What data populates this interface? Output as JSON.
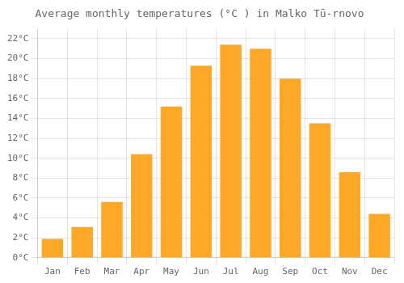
{
  "chart_data": {
    "type": "bar",
    "title": "Average monthly temperatures (°C ) in Malko Tū-rnovo",
    "categories": [
      "Jan",
      "Feb",
      "Mar",
      "Apr",
      "May",
      "Jun",
      "Jul",
      "Aug",
      "Sep",
      "Oct",
      "Nov",
      "Dec"
    ],
    "values": [
      1.9,
      3.1,
      5.6,
      10.4,
      15.2,
      19.3,
      21.4,
      21.0,
      18.0,
      13.5,
      8.6,
      4.4
    ],
    "color": "#FFA726",
    "ylim": [
      0,
      23
    ],
    "yticks": [
      {
        "value": 0,
        "label": "0°C"
      },
      {
        "value": 2,
        "label": "2°C"
      },
      {
        "value": 4,
        "label": "4°C"
      },
      {
        "value": 6,
        "label": "6°C"
      },
      {
        "value": 8,
        "label": "8°C"
      },
      {
        "value": 10,
        "label": "10°C"
      },
      {
        "value": 12,
        "label": "12°C"
      },
      {
        "value": 14,
        "label": "14°C"
      },
      {
        "value": 16,
        "label": "16°C"
      },
      {
        "value": 18,
        "label": "18°C"
      },
      {
        "value": 20,
        "label": "20°C"
      },
      {
        "value": 22,
        "label": "22°C"
      }
    ],
    "grid": true
  }
}
